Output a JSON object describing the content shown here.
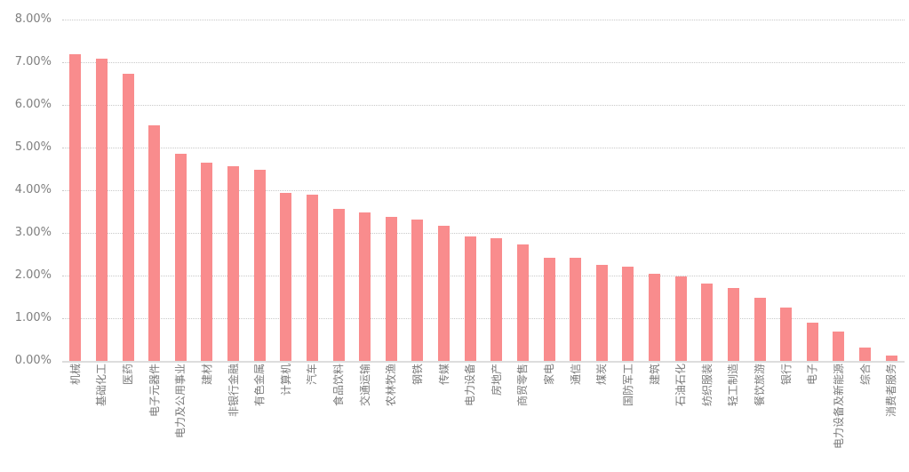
{
  "chart_data": {
    "type": "bar",
    "title": "",
    "legend": "none",
    "grid": "horizontal-dotted",
    "background_color": "#ffffff",
    "bar_color": "#f98c8d",
    "axis_label_color": "#7f7f7f",
    "x_label_color": "#7a7a7a",
    "gridline_color": "#c9c9c9",
    "baseline_color": "#dddddd",
    "ylim": [
      0,
      8
    ],
    "y_tick_step": 1,
    "y_tick_labels": [
      "0.00%",
      "1.00%",
      "2.00%",
      "3.00%",
      "4.00%",
      "5.00%",
      "6.00%",
      "7.00%",
      "8.00%"
    ],
    "x_label_rotation": -90,
    "value_unit": "%",
    "categories": [
      "机械",
      "基础化工",
      "医药",
      "电子元器件",
      "电力及公用事业",
      "建材",
      "非银行金融",
      "有色金属",
      "计算机",
      "汽车",
      "食品饮料",
      "交通运输",
      "农林牧渔",
      "钢铁",
      "传媒",
      "电力设备",
      "房地产",
      "商贸零售",
      "家电",
      "通信",
      "煤炭",
      "国防军工",
      "建筑",
      "石油石化",
      "纺织服装",
      "轻工制造",
      "餐饮旅游",
      "银行",
      "电子",
      "电力设备及新能源",
      "综合",
      "消费者服务"
    ],
    "values": [
      7.18,
      7.08,
      6.73,
      5.52,
      4.86,
      4.65,
      4.57,
      4.47,
      3.94,
      3.9,
      3.57,
      3.48,
      3.38,
      3.31,
      3.17,
      2.92,
      2.88,
      2.73,
      2.42,
      2.41,
      2.25,
      2.21,
      2.05,
      1.98,
      1.81,
      1.7,
      1.48,
      1.25,
      0.9,
      0.69,
      0.32,
      0.12
    ]
  }
}
